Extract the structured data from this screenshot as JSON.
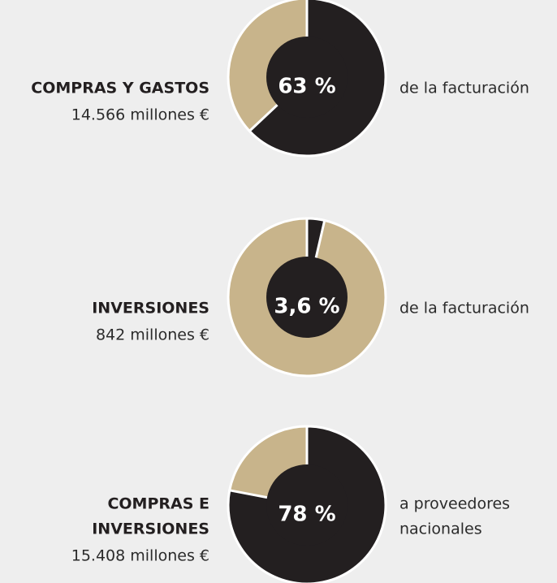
{
  "chart_data": [
    {
      "type": "pie",
      "label": [
        "COMPRAS Y GASTOS"
      ],
      "subtitle": "14.566 millones €",
      "note": [
        "de la facturación"
      ],
      "values": [
        63
      ],
      "value_labels": [
        "63 %"
      ],
      "colors": [
        "#231f20"
      ],
      "rest_color": "#c8b48b"
    },
    {
      "type": "pie",
      "label": [
        "INVERSIONES"
      ],
      "subtitle": "842 millones €",
      "note": [
        "de la facturación"
      ],
      "values": [
        3.6
      ],
      "value_labels": [
        "3,6 %"
      ],
      "colors": [
        "#231f20"
      ],
      "rest_color": "#c8b48b"
    },
    {
      "type": "pie",
      "label": [
        "COMPRAS E",
        "INVERSIONES"
      ],
      "subtitle": "15.408 millones €",
      "note": [
        "a proveedores",
        "nacionales"
      ],
      "values": [
        78
      ],
      "value_labels": [
        "78 %"
      ],
      "colors": [
        "#231f20"
      ],
      "rest_color": "#c8b48b"
    }
  ]
}
